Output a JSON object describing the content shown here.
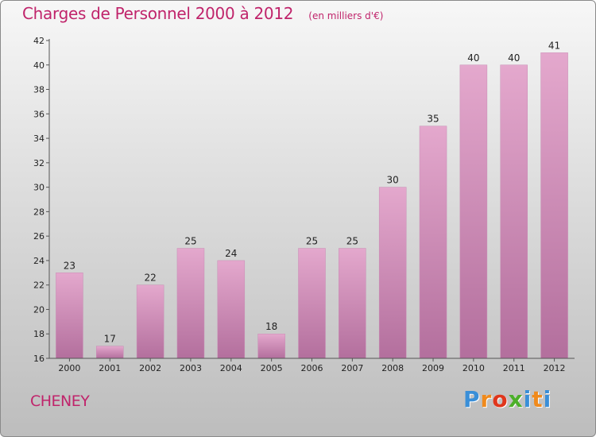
{
  "header": {
    "title": "Charges de Personnel 2000 à 2012",
    "unit": "(en milliers d'€)"
  },
  "footer": {
    "commune": "CHENEY",
    "brand": "Proxiti"
  },
  "colors": {
    "title": "#c0246b",
    "bar_top": "#e4a8cd",
    "bar_bottom": "#b36f9d",
    "brand_letters": [
      "#3a8fd8",
      "#f08a1c",
      "#e0361c",
      "#4caf2a",
      "#3a8fd8",
      "#f08a1c",
      "#3a8fd8"
    ]
  },
  "chart_data": {
    "type": "bar",
    "title": "Charges de Personnel 2000 à 2012",
    "subtitle": "(en milliers d'€)",
    "xlabel": "",
    "ylabel": "",
    "categories": [
      "2000",
      "2001",
      "2002",
      "2003",
      "2004",
      "2005",
      "2006",
      "2007",
      "2008",
      "2009",
      "2010",
      "2011",
      "2012"
    ],
    "values": [
      23,
      17,
      22,
      25,
      24,
      18,
      25,
      25,
      30,
      35,
      40,
      40,
      41
    ],
    "ylim": [
      16,
      42
    ],
    "yticks": [
      16,
      18,
      20,
      22,
      24,
      26,
      28,
      30,
      32,
      34,
      36,
      38,
      40,
      42
    ],
    "grid": false,
    "legend": "none"
  }
}
